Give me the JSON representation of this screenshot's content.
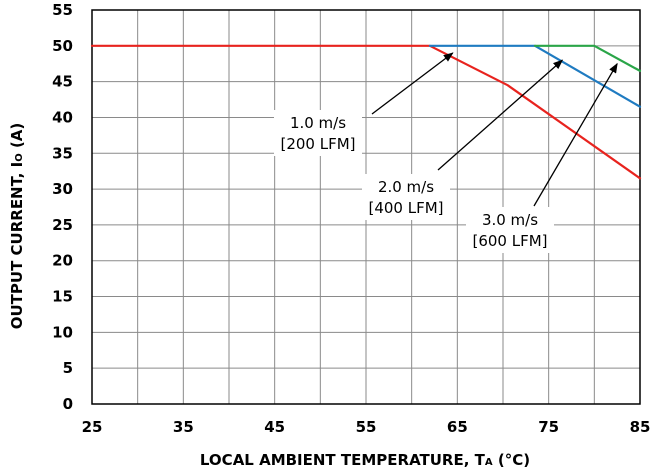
{
  "chart_data": {
    "type": "line",
    "xlabel": {
      "main": "LOCAL AMBIENT TEMPERATURE, T",
      "sub": "A",
      "tail": " (°C)"
    },
    "ylabel": {
      "main": "OUTPUT CURRENT, I",
      "sub": "O",
      "tail": " (A)"
    },
    "xlim": [
      25,
      85
    ],
    "ylim": [
      0,
      55
    ],
    "xticks": [
      25,
      35,
      45,
      55,
      65,
      75,
      85
    ],
    "yticks": [
      0,
      5,
      10,
      15,
      20,
      25,
      30,
      35,
      40,
      45,
      50,
      55
    ],
    "grid": true,
    "series": [
      {
        "color": "#e8231e",
        "points": [
          [
            25,
            50
          ],
          [
            62,
            50
          ],
          [
            70.5,
            44.5
          ],
          [
            85,
            31.5
          ]
        ]
      },
      {
        "color": "#1f7bc1",
        "points": [
          [
            62,
            50
          ],
          [
            73.5,
            50
          ],
          [
            85,
            41.5
          ]
        ]
      },
      {
        "color": "#2aa548",
        "points": [
          [
            73.5,
            50
          ],
          [
            80,
            50
          ],
          [
            85,
            46.5
          ]
        ]
      }
    ],
    "annotations": [
      {
        "lines": [
          "1.0 m/s",
          "[200 LFM]"
        ],
        "arrow_to": [
          64.5,
          49
        ]
      },
      {
        "lines": [
          "2.0 m/s",
          "[400 LFM]"
        ],
        "arrow_to": [
          76.5,
          48
        ]
      },
      {
        "lines": [
          "3.0 m/s",
          "[600 LFM]"
        ],
        "arrow_to": [
          82.5,
          47.5
        ]
      }
    ]
  }
}
